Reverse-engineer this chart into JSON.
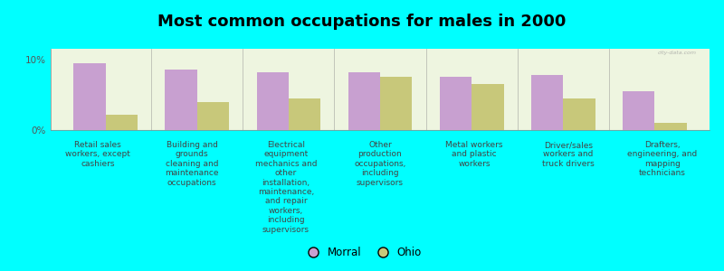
{
  "title": "Most common occupations for males in 2000",
  "background_color": "#00FFFF",
  "plot_bg_color": "#EEF5E0",
  "categories": [
    "Retail sales\nworkers, except\ncashiers",
    "Building and\ngrounds\ncleaning and\nmaintenance\noccupations",
    "Electrical\nequipment\nmechanics and\nother\ninstallation,\nmaintenance,\nand repair\nworkers,\nincluding\nsupervisors",
    "Other\nproduction\noccupations,\nincluding\nsupervisors",
    "Metal workers\nand plastic\nworkers",
    "Driver/sales\nworkers and\ntruck drivers",
    "Drafters,\nengineering, and\nmapping\ntechnicians"
  ],
  "morral_values": [
    9.5,
    8.5,
    8.2,
    8.2,
    7.5,
    7.8,
    5.5
  ],
  "ohio_values": [
    2.2,
    4.0,
    4.5,
    7.5,
    6.5,
    4.5,
    1.0
  ],
  "morral_color": "#C8A0D0",
  "ohio_color": "#C8C87A",
  "ylim": [
    0,
    11.5
  ],
  "yticks": [
    0,
    10
  ],
  "ytick_labels": [
    "0%",
    "10%"
  ],
  "legend_labels": [
    "Morral",
    "Ohio"
  ],
  "bar_width": 0.35,
  "title_fontsize": 13,
  "label_fontsize": 6.5,
  "tick_fontsize": 7.5,
  "watermark": "city-data.com"
}
